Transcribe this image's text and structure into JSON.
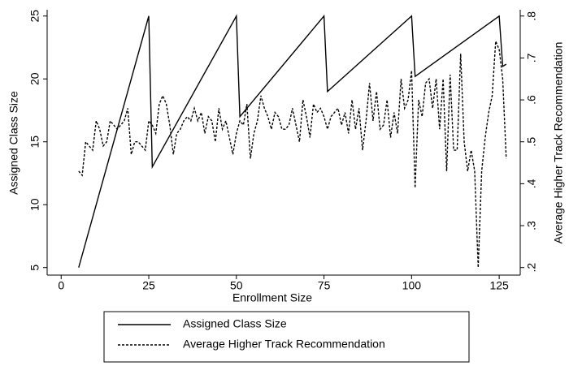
{
  "chart_data": {
    "type": "line",
    "xlabel": "Enrollment Size",
    "ylabel": "Assigned Class Size",
    "y2label": "Average Higher Track Recommendation",
    "xlim": [
      -4,
      131
    ],
    "xticks": [
      0,
      25,
      50,
      75,
      100,
      125
    ],
    "ylim": [
      4.4,
      25.5
    ],
    "yticks": [
      5,
      10,
      15,
      20,
      25
    ],
    "y2lim": [
      0.182,
      0.815
    ],
    "y2ticks": [
      {
        "value": 0.2,
        "label": ".2"
      },
      {
        "value": 0.3,
        "label": ".3"
      },
      {
        "value": 0.4,
        "label": ".4"
      },
      {
        "value": 0.5,
        "label": ".5"
      },
      {
        "value": 0.6,
        "label": ".6"
      },
      {
        "value": 0.7,
        "label": ".7"
      },
      {
        "value": 0.8,
        "label": ".8"
      }
    ],
    "series": [
      {
        "name": "Assigned Class Size",
        "color": "#000000",
        "dash": false,
        "x": [
          5,
          25,
          26,
          50,
          51,
          75,
          76,
          100,
          101,
          125,
          126,
          127
        ],
        "values": [
          5,
          25,
          13,
          25,
          17,
          25,
          19,
          25,
          20.2,
          25,
          21,
          21.17
        ]
      },
      {
        "name": "Average Higher Track Recommendation",
        "color": "#000000",
        "dash": true,
        "axis": "y2",
        "x": [
          5,
          6,
          7,
          8,
          9,
          10,
          11,
          12,
          13,
          14,
          15,
          16,
          17,
          18,
          19,
          20,
          21,
          22,
          23,
          24,
          25,
          26,
          27,
          28,
          29,
          30,
          31,
          32,
          33,
          34,
          35,
          36,
          37,
          38,
          39,
          40,
          41,
          42,
          43,
          44,
          45,
          46,
          47,
          48,
          49,
          50,
          51,
          52,
          53,
          54,
          55,
          56,
          57,
          58,
          59,
          60,
          61,
          62,
          63,
          64,
          65,
          66,
          67,
          68,
          69,
          70,
          71,
          72,
          73,
          74,
          75,
          76,
          77,
          78,
          79,
          80,
          81,
          82,
          83,
          84,
          85,
          86,
          87,
          88,
          89,
          90,
          91,
          92,
          93,
          94,
          95,
          96,
          97,
          98,
          99,
          100,
          101,
          102,
          103,
          104,
          105,
          106,
          107,
          108,
          109,
          110,
          111,
          112,
          113,
          114,
          115,
          116,
          117,
          118,
          119,
          120,
          121,
          122,
          123,
          124,
          125,
          126,
          127
        ],
        "values": [
          0.43,
          0.42,
          0.5,
          0.49,
          0.48,
          0.55,
          0.53,
          0.49,
          0.5,
          0.55,
          0.54,
          0.53,
          0.54,
          0.55,
          0.58,
          0.47,
          0.5,
          0.5,
          0.49,
          0.48,
          0.55,
          0.54,
          0.52,
          0.59,
          0.61,
          0.59,
          0.54,
          0.47,
          0.52,
          0.53,
          0.55,
          0.56,
          0.55,
          0.58,
          0.55,
          0.57,
          0.52,
          0.56,
          0.55,
          0.5,
          0.58,
          0.53,
          0.55,
          0.51,
          0.47,
          0.52,
          0.55,
          0.54,
          0.59,
          0.46,
          0.52,
          0.55,
          0.61,
          0.58,
          0.56,
          0.53,
          0.57,
          0.56,
          0.53,
          0.53,
          0.54,
          0.58,
          0.54,
          0.5,
          0.6,
          0.56,
          0.51,
          0.59,
          0.57,
          0.58,
          0.56,
          0.53,
          0.56,
          0.57,
          0.58,
          0.54,
          0.57,
          0.52,
          0.6,
          0.53,
          0.58,
          0.48,
          0.55,
          0.64,
          0.55,
          0.62,
          0.53,
          0.54,
          0.6,
          0.51,
          0.57,
          0.52,
          0.65,
          0.58,
          0.6,
          0.67,
          0.39,
          0.6,
          0.56,
          0.64,
          0.65,
          0.58,
          0.65,
          0.53,
          0.65,
          0.43,
          0.66,
          0.48,
          0.48,
          0.71,
          0.5,
          0.43,
          0.48,
          0.43,
          0.2,
          0.43,
          0.51,
          0.57,
          0.61,
          0.74,
          0.72,
          0.65,
          0.46
        ]
      }
    ]
  }
}
